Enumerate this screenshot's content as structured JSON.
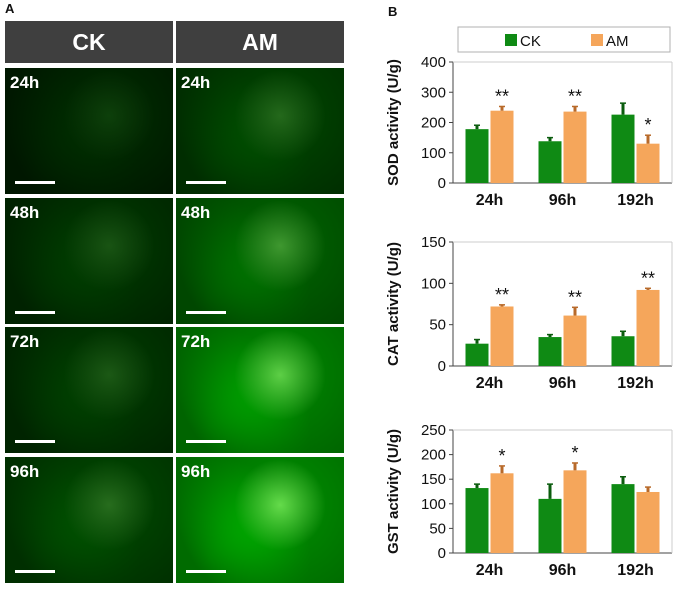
{
  "panel_a": {
    "label": "A",
    "columns": [
      "CK",
      "AM"
    ],
    "rows": [
      {
        "time": "24h",
        "intensity": [
          0.12,
          0.32
        ]
      },
      {
        "time": "48h",
        "intensity": [
          0.22,
          0.55
        ]
      },
      {
        "time": "72h",
        "intensity": [
          0.24,
          0.82
        ]
      },
      {
        "time": "96h",
        "intensity": [
          0.34,
          0.88
        ]
      }
    ]
  },
  "panel_b": {
    "label": "B",
    "legend": [
      "CK",
      "AM"
    ],
    "colors": {
      "CK": "#0f8a14",
      "AM": "#f5a65b"
    }
  },
  "chart_data": [
    {
      "type": "bar",
      "categories": [
        "24h",
        "96h",
        "192h"
      ],
      "ylabel": "SOD activity (U/g)",
      "ylim": [
        0,
        400
      ],
      "yticks": [
        0,
        100,
        200,
        300,
        400
      ],
      "series": [
        {
          "name": "CK",
          "values": [
            178,
            138,
            226
          ],
          "errors": [
            13,
            12,
            38
          ]
        },
        {
          "name": "AM",
          "values": [
            239,
            236,
            130
          ],
          "errors": [
            14,
            17,
            28
          ]
        }
      ],
      "annotations": [
        {
          "category": "24h",
          "series": "AM",
          "text": "**"
        },
        {
          "category": "96h",
          "series": "AM",
          "text": "**"
        },
        {
          "category": "192h",
          "series": "AM",
          "text": "*"
        }
      ]
    },
    {
      "type": "bar",
      "categories": [
        "24h",
        "96h",
        "192h"
      ],
      "ylabel": "CAT activity (U/g)",
      "ylim": [
        0,
        150
      ],
      "yticks": [
        0,
        50,
        100,
        150
      ],
      "series": [
        {
          "name": "CK",
          "values": [
            27,
            35,
            36
          ],
          "errors": [
            5,
            3,
            6
          ]
        },
        {
          "name": "AM",
          "values": [
            72,
            61,
            92
          ],
          "errors": [
            2,
            10,
            2
          ]
        }
      ],
      "annotations": [
        {
          "category": "24h",
          "series": "AM",
          "text": "**"
        },
        {
          "category": "96h",
          "series": "AM",
          "text": "**"
        },
        {
          "category": "192h",
          "series": "AM",
          "text": "**"
        }
      ]
    },
    {
      "type": "bar",
      "categories": [
        "24h",
        "96h",
        "192h"
      ],
      "ylabel": "GST activity (U/g)",
      "ylim": [
        0,
        250
      ],
      "yticks": [
        0,
        50,
        100,
        150,
        200,
        250
      ],
      "series": [
        {
          "name": "CK",
          "values": [
            132,
            110,
            140
          ],
          "errors": [
            8,
            30,
            15
          ]
        },
        {
          "name": "AM",
          "values": [
            162,
            168,
            124
          ],
          "errors": [
            15,
            15,
            10
          ]
        }
      ],
      "annotations": [
        {
          "category": "24h",
          "series": "AM",
          "text": "*"
        },
        {
          "category": "96h",
          "series": "AM",
          "text": "*"
        }
      ]
    }
  ]
}
